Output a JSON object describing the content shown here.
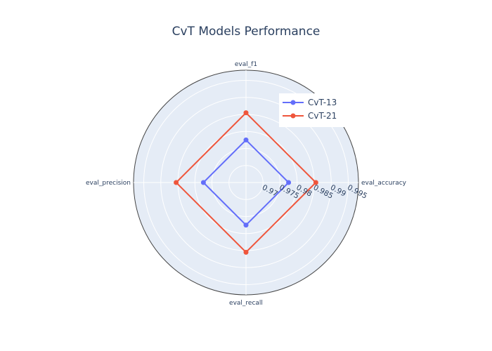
{
  "chart_data": {
    "type": "radar",
    "title": "CvT Models Performance",
    "axes": [
      "eval_accuracy",
      "eval_f1",
      "eval_precision",
      "eval_recall"
    ],
    "radial_range": [
      0.965,
      0.998
    ],
    "radial_ticks": [
      0.97,
      0.975,
      0.98,
      0.985,
      0.99,
      0.995
    ],
    "radial_tick_labels": [
      "0.97",
      "0.975",
      "0.98",
      "0.985",
      "0.99",
      "0.995"
    ],
    "series": [
      {
        "name": "CvT-13",
        "color": "#636efa",
        "values": [
          0.9775,
          0.9775,
          0.9775,
          0.9775
        ]
      },
      {
        "name": "CvT-21",
        "color": "#ef553b",
        "values": [
          0.9855,
          0.9855,
          0.9855,
          0.9855
        ]
      }
    ],
    "legend_position": "top-right",
    "grid": true,
    "background_color": "#e5ecf6"
  }
}
